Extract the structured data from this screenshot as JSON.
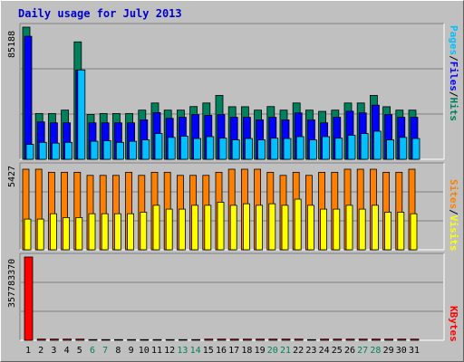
{
  "title": "Daily usage for July 2013",
  "colors": {
    "hits": "#00805c",
    "files": "#0000ff",
    "pages": "#00c0ff",
    "visits": "#ffff00",
    "sites": "#ff8000",
    "kbytes": "#ff0000",
    "weekday": "#000000",
    "weekend": "#00805c"
  },
  "chart_data": [
    {
      "type": "bar",
      "name": "hits-files-pages",
      "ylabel": "85188",
      "ymax": 85188,
      "legend": [
        "Pages",
        "/",
        "Files",
        "/",
        "Hits"
      ],
      "categories": [
        "1",
        "2",
        "3",
        "4",
        "5",
        "6",
        "7",
        "8",
        "9",
        "10",
        "11",
        "12",
        "13",
        "14",
        "15",
        "16",
        "17",
        "18",
        "19",
        "20",
        "21",
        "22",
        "23",
        "24",
        "25",
        "26",
        "27",
        "28",
        "29",
        "30",
        "31"
      ],
      "weekend": [
        6,
        7,
        13,
        14,
        20,
        21,
        27,
        28
      ],
      "series": [
        {
          "name": "Hits",
          "values": [
            85188,
            29500,
            29500,
            31700,
            75700,
            28900,
            29500,
            29500,
            29500,
            31700,
            36300,
            31700,
            31700,
            34000,
            36300,
            41200,
            33900,
            33900,
            31700,
            34000,
            31700,
            36300,
            31700,
            30900,
            31700,
            36300,
            36300,
            41200,
            33900,
            31700,
            31700
          ]
        },
        {
          "name": "Files",
          "values": [
            79300,
            24100,
            23500,
            23500,
            57600,
            23500,
            23500,
            23500,
            23500,
            25400,
            30100,
            26400,
            27100,
            28800,
            28300,
            28800,
            27100,
            27100,
            25400,
            27100,
            25400,
            29900,
            25400,
            23500,
            27100,
            31000,
            29900,
            34900,
            28800,
            27100,
            27100
          ]
        },
        {
          "name": "Pages",
          "values": [
            9600,
            10900,
            10400,
            10900,
            57600,
            11600,
            12000,
            10900,
            11600,
            12500,
            16600,
            14100,
            14900,
            13400,
            14600,
            13600,
            12500,
            13400,
            12500,
            13600,
            13400,
            14600,
            12500,
            14600,
            13600,
            15500,
            16600,
            18100,
            12500,
            14100,
            13400
          ]
        }
      ]
    },
    {
      "type": "bar",
      "name": "visits-sites",
      "ylabel": "5427",
      "ymax": 5427,
      "legend": [
        "Sites",
        "/",
        "Visits"
      ],
      "series": [
        {
          "name": "Visits",
          "values": [
            2000,
            2000,
            2350,
            2100,
            2100,
            2350,
            2350,
            2350,
            2350,
            2450,
            2900,
            2650,
            2650,
            2900,
            2900,
            3100,
            2900,
            3000,
            2900,
            3000,
            2900,
            3300,
            2900,
            2650,
            2650,
            2900,
            2650,
            2900,
            2450,
            2450,
            2350
          ]
        },
        {
          "name": "Sites",
          "values": [
            5250,
            5250,
            5050,
            5050,
            5050,
            4850,
            4850,
            4850,
            5050,
            4850,
            5050,
            5050,
            4850,
            4850,
            4850,
            5050,
            5250,
            5250,
            5250,
            5050,
            4850,
            5050,
            4850,
            5050,
            5050,
            5250,
            5250,
            5250,
            5050,
            5050,
            5250
          ]
        }
      ]
    },
    {
      "type": "bar",
      "name": "kbytes",
      "ylabel": "357783370",
      "ymax": 357783370,
      "legend": [
        "KBytes"
      ],
      "series": [
        {
          "name": "KBytes",
          "values": [
            357783370,
            5000000,
            5000000,
            5000000,
            5000000,
            3000000,
            3000000,
            3000000,
            3000000,
            3000000,
            3000000,
            3000000,
            3000000,
            3000000,
            5000000,
            5000000,
            5000000,
            5000000,
            5000000,
            5000000,
            5000000,
            5000000,
            3000000,
            5000000,
            5000000,
            5000000,
            5000000,
            5000000,
            5000000,
            5000000,
            5000000
          ]
        }
      ]
    }
  ]
}
